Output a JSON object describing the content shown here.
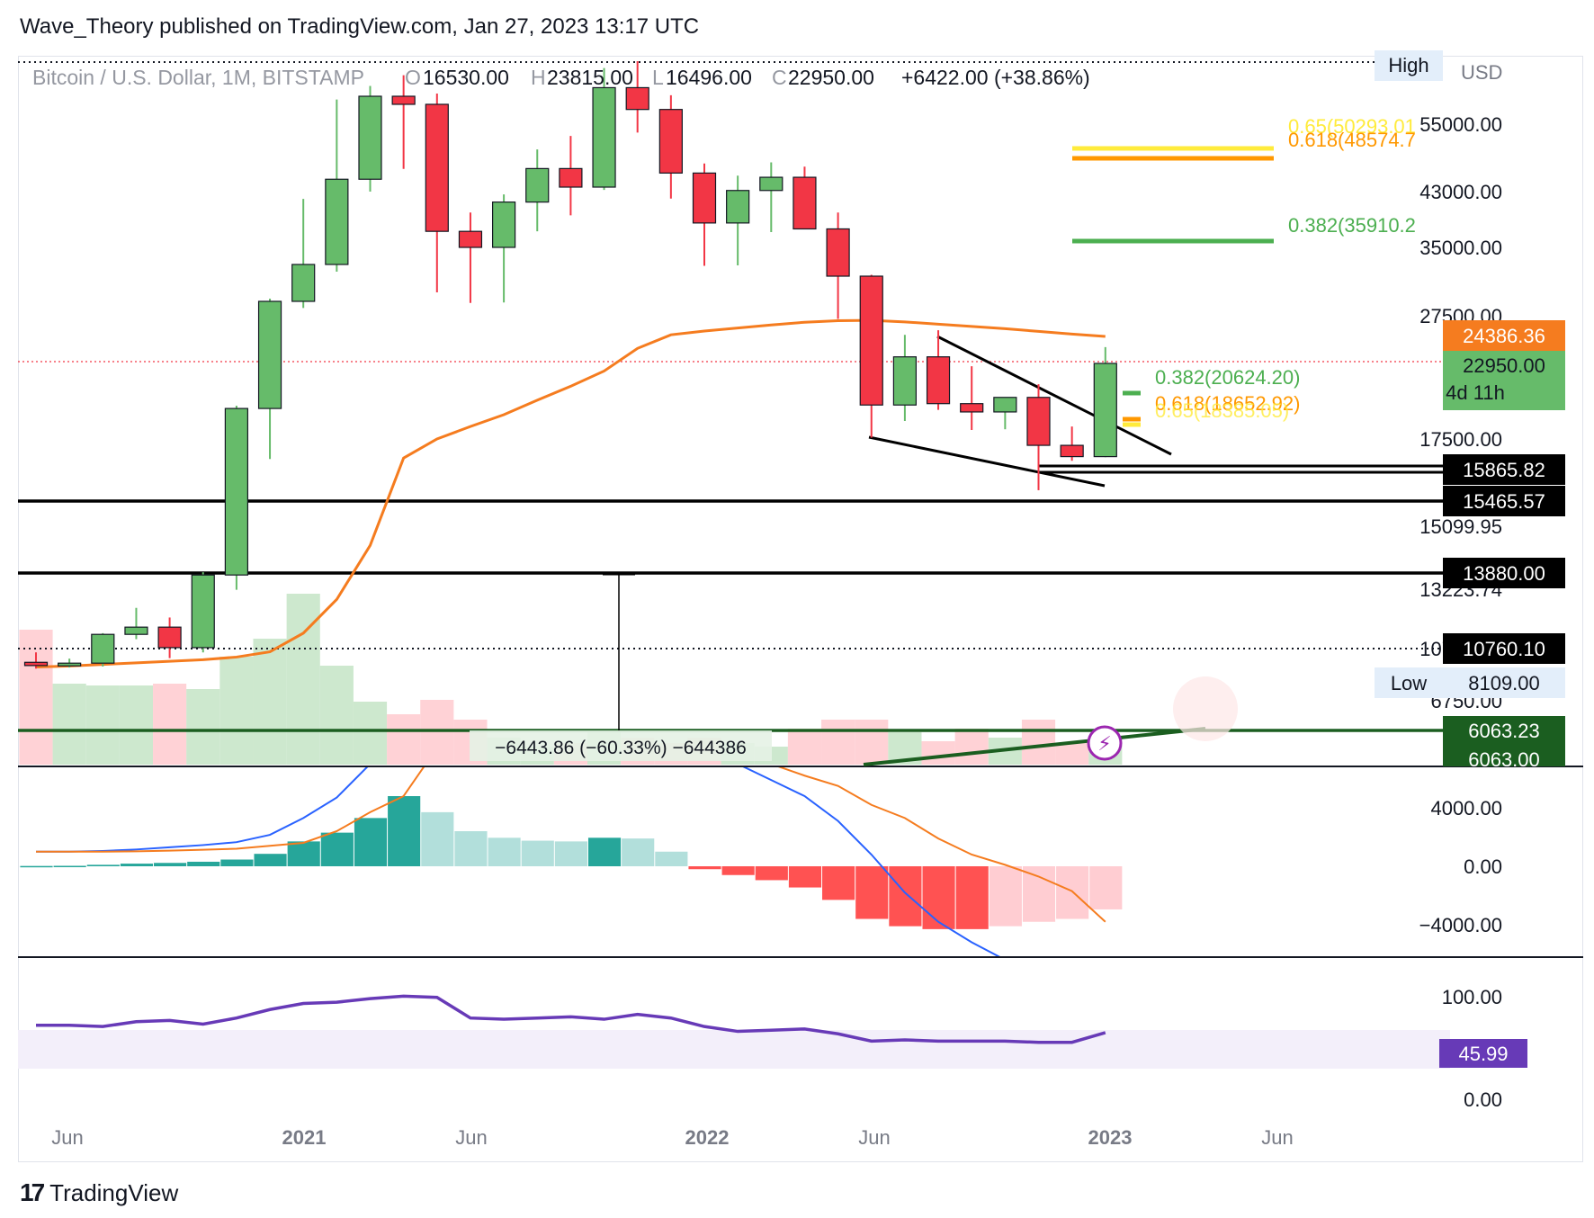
{
  "header": {
    "text": "Wave_Theory published on TradingView.com, Jan 27, 2023 13:17 UTC"
  },
  "legend": {
    "symbol": "Bitcoin / U.S. Dollar, 1M, BITSTAMP",
    "open_label": "O",
    "open": "16530.00",
    "high_label": "H",
    "high": "23815.00",
    "low_label": "L",
    "low": "16496.00",
    "close_label": "C",
    "close": "22950.00",
    "change": "+6422.00 (+38.86%)"
  },
  "brand": {
    "name": "TradingView",
    "logo_text": "17"
  },
  "colors": {
    "up": "#66bb6a",
    "down": "#f23645",
    "ema": "#f57c1f",
    "macd_line": "#2962ff",
    "signal": "#f57c1f",
    "rsi": "#673ab7",
    "fib_382": "#4caf50",
    "fib_618": "#ff9800",
    "fib_65": "#ffeb3b",
    "hist_up_strong": "#26a69a",
    "hist_up_weak": "#b2dfdb",
    "hist_down_strong": "#ff5252",
    "hist_down_weak": "#ffcdd2"
  },
  "chart_data": {
    "type": "candlestick",
    "currency": "USD",
    "x_labels": [
      "Jun",
      "2021",
      "Jun",
      "2022",
      "Jun",
      "2023",
      "Jun"
    ],
    "price_ticks": [
      "55000.00",
      "43000.00",
      "35000.00",
      "27500.00",
      "17500.00",
      "15099.95",
      "13223.74",
      "10760.00",
      "6750.00"
    ],
    "candles": [
      {
        "o": 9450,
        "h": 10400,
        "l": 8850,
        "c": 9140
      },
      {
        "o": 9140,
        "h": 9800,
        "l": 8950,
        "c": 9370
      },
      {
        "o": 9370,
        "h": 11400,
        "l": 9050,
        "c": 11350
      },
      {
        "o": 11350,
        "h": 12450,
        "l": 11150,
        "c": 11650
      },
      {
        "o": 11650,
        "h": 12050,
        "l": 9850,
        "c": 10800
      },
      {
        "o": 10800,
        "h": 13900,
        "l": 10400,
        "c": 13800
      },
      {
        "o": 13800,
        "h": 19900,
        "l": 13200,
        "c": 19700
      },
      {
        "o": 19700,
        "h": 29300,
        "l": 16400,
        "c": 29000
      },
      {
        "o": 29000,
        "h": 41950,
        "l": 28130,
        "c": 33100
      },
      {
        "o": 33100,
        "h": 58350,
        "l": 32300,
        "c": 45200
      },
      {
        "o": 45200,
        "h": 61800,
        "l": 43000,
        "c": 58800
      },
      {
        "o": 58800,
        "h": 64900,
        "l": 47050,
        "c": 57700
      },
      {
        "o": 57700,
        "h": 59600,
        "l": 30000,
        "c": 37300
      },
      {
        "o": 37300,
        "h": 40000,
        "l": 28800,
        "c": 35000
      },
      {
        "o": 35000,
        "h": 42600,
        "l": 28850,
        "c": 41500
      },
      {
        "o": 41500,
        "h": 50500,
        "l": 37300,
        "c": 47100
      },
      {
        "o": 47100,
        "h": 52900,
        "l": 39600,
        "c": 43800
      },
      {
        "o": 43800,
        "h": 67000,
        "l": 43300,
        "c": 61300
      },
      {
        "o": 61300,
        "h": 69000,
        "l": 53500,
        "c": 57000
      },
      {
        "o": 57000,
        "h": 59100,
        "l": 42000,
        "c": 46300
      },
      {
        "o": 46300,
        "h": 48000,
        "l": 32950,
        "c": 38500
      },
      {
        "o": 38500,
        "h": 45850,
        "l": 33000,
        "c": 43200
      },
      {
        "o": 43200,
        "h": 48200,
        "l": 37200,
        "c": 45550
      },
      {
        "o": 45550,
        "h": 47450,
        "l": 37700,
        "c": 37650
      },
      {
        "o": 37650,
        "h": 40000,
        "l": 26700,
        "c": 31800
      },
      {
        "o": 31800,
        "h": 31950,
        "l": 17600,
        "c": 19950
      },
      {
        "o": 19950,
        "h": 24600,
        "l": 18800,
        "c": 23300
      },
      {
        "o": 23300,
        "h": 25200,
        "l": 19600,
        "c": 20050
      },
      {
        "o": 20050,
        "h": 22750,
        "l": 18150,
        "c": 19450
      },
      {
        "o": 19450,
        "h": 20500,
        "l": 18200,
        "c": 20500
      },
      {
        "o": 20500,
        "h": 21450,
        "l": 15600,
        "c": 17150
      },
      {
        "o": 17150,
        "h": 18400,
        "l": 16300,
        "c": 16530
      },
      {
        "o": 16530,
        "h": 23815,
        "l": 16496,
        "c": 22950
      }
    ],
    "ema": [
      9000,
      9100,
      9250,
      9400,
      9550,
      9700,
      9950,
      10450,
      11400,
      12800,
      14600,
      16450,
      17500,
      18400,
      19250,
      20300,
      21300,
      22400,
      23750,
      24600,
      25100,
      25500,
      25900,
      26250,
      26450,
      26500,
      26300,
      26000,
      25700,
      25400,
      25050,
      24700,
      24386.36
    ],
    "fib_levels": [
      {
        "label": "0.65(50293.01",
        "value": 50293.01,
        "color": "#ffeb3b"
      },
      {
        "label": "0.618(48574.7",
        "value": 48574.7,
        "color": "#ff9800"
      },
      {
        "label": "0.382(35910.2",
        "value": 35910.2,
        "color": "#4caf50"
      },
      {
        "label": "0.382(20624.20)",
        "value": 20624.2,
        "color": "#4caf50"
      },
      {
        "label": "0.618(18652.92)",
        "value": 18652.92,
        "color": "#ff9800"
      },
      {
        "label": "0.65(18385.05)",
        "value": 18385.05,
        "color": "#ffeb3b"
      }
    ],
    "horizontal_levels": [
      15865.82,
      15465.57,
      13880.0
    ],
    "price_badges": [
      {
        "text": "High",
        "style": "hilo"
      },
      {
        "text": "USD",
        "style": "plain"
      },
      {
        "text": "24386.36",
        "style": "ema"
      },
      {
        "text": "22950.00",
        "style": "last"
      },
      {
        "text": "4d 11h",
        "style": "last"
      },
      {
        "text": "15865.82",
        "style": "black"
      },
      {
        "text": "15465.57",
        "style": "black"
      },
      {
        "text": "13880.00",
        "style": "black"
      },
      {
        "text": "10760.10",
        "style": "black"
      },
      {
        "text": "Low",
        "style": "hilo"
      },
      {
        "text": "8109.00",
        "style": "hilo"
      },
      {
        "text": "6063.23",
        "style": "green"
      },
      {
        "text": "6063.00",
        "style": "green"
      }
    ],
    "measure_label": "−6443.86 (−60.33%) −644386",
    "macd": {
      "ticks": [
        "4000.00",
        "0.00",
        "−4000.00"
      ],
      "hist": [
        20,
        30,
        100,
        180,
        230,
        310,
        460,
        850,
        1700,
        2300,
        3300,
        4800,
        3700,
        2400,
        1950,
        1750,
        1700,
        1950,
        1900,
        1000,
        -200,
        -600,
        -950,
        -1450,
        -2300,
        -3600,
        -4100,
        -4300,
        -4300,
        -4100,
        -3800,
        -3600,
        -2950
      ],
      "macd_line": [
        1000,
        1000,
        1050,
        1150,
        1300,
        1450,
        1650,
        2150,
        3300,
        4700,
        7000,
        9600,
        11800,
        12400,
        12600,
        12700,
        12400,
        11800,
        10800,
        9500,
        8300,
        7000,
        5900,
        4800,
        3100,
        800,
        -1800,
        -3800,
        -5200,
        -6400,
        -7400,
        -8100,
        -8200
      ],
      "signal_line": [
        1000,
        1000,
        1000,
        1020,
        1070,
        1130,
        1200,
        1400,
        1600,
        2400,
        3700,
        4800,
        8100,
        10000,
        10700,
        11000,
        10800,
        10000,
        9000,
        8600,
        8500,
        8000,
        7000,
        6200,
        5500,
        4200,
        3300,
        1900,
        800,
        100,
        -700,
        -1700,
        -3800
      ]
    },
    "rsi": {
      "ticks": [
        "100.00",
        "0.00"
      ],
      "values": [
        52,
        52,
        51,
        55,
        56,
        53,
        58,
        65,
        70,
        71,
        74,
        76,
        75,
        58,
        57,
        58,
        59,
        57,
        61,
        58,
        51,
        47,
        48,
        49,
        45,
        39,
        40,
        39,
        39,
        39,
        38,
        38,
        45.99
      ],
      "last_label": "45.99"
    }
  }
}
